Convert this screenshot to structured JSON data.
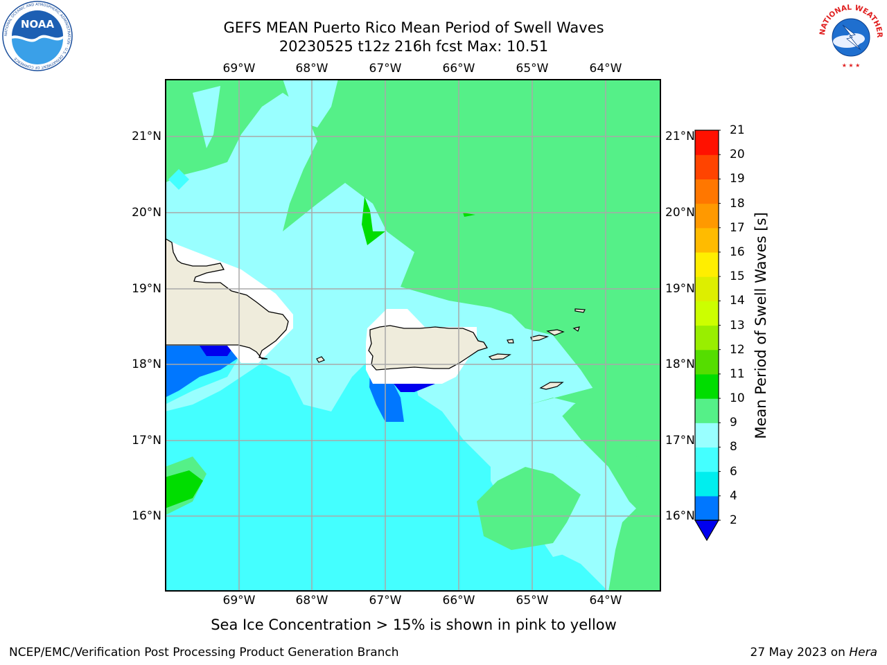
{
  "header": {
    "title_line1": "GEFS MEAN Puerto Rico Mean Period of Swell Waves",
    "title_line2": "20230525 t12z 216h fcst   Max: 10.51"
  },
  "logos": {
    "left": {
      "name": "NOAA",
      "ring_text": "NATIONAL OCEANIC AND ATMOSPHERIC ADMINISTRATION · U.S. DEPARTMENT OF COMMERCE"
    },
    "right": {
      "name": "NATIONAL WEATHER SERVICE"
    }
  },
  "map": {
    "longitude_labels": [
      "69°W",
      "68°W",
      "67°W",
      "66°W",
      "65°W",
      "64°W"
    ],
    "latitude_labels": [
      "21°N",
      "20°N",
      "19°N",
      "18°N",
      "17°N",
      "16°N"
    ],
    "lon_range": [
      -70.0,
      -63.25
    ],
    "lat_range": [
      15.0,
      21.75
    ],
    "gridlines": true,
    "land_color": "#efecdc",
    "coast_color": "#000000"
  },
  "colorbar": {
    "label": "Mean Period of Swell Waves [s]",
    "ticks": [
      "2",
      "4",
      "6",
      "8",
      "9",
      "10",
      "11",
      "12",
      "13",
      "14",
      "15",
      "16",
      "17",
      "18",
      "19",
      "20",
      "21"
    ],
    "colors": [
      "#0000ee",
      "#0077ff",
      "#00eeee",
      "#44ffff",
      "#99ffff",
      "#55f088",
      "#00dd00",
      "#55dd00",
      "#99ee00",
      "#ccff00",
      "#ddee00",
      "#ffee00",
      "#ffbb00",
      "#ff9900",
      "#ff7700",
      "#ff4400",
      "#ff1100",
      "#ff0000"
    ]
  },
  "subcaption": "Sea Ice Concentration > 15% is shown in pink to yellow",
  "footer": {
    "left": "NCEP/EMC/Verification Post Processing Product Generation Branch",
    "date": "27 May 2023 on ",
    "machine": "Hera"
  }
}
